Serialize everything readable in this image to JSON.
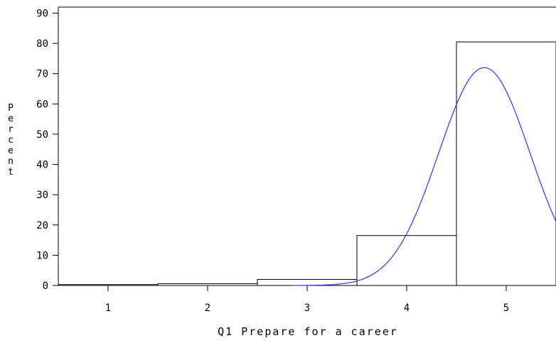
{
  "chart_data": {
    "type": "bar",
    "title": "",
    "xlabel": "Q1 Prepare for a career",
    "ylabel": "Percent",
    "x_ticks": [
      "1",
      "2",
      "3",
      "4",
      "5"
    ],
    "y_ticks": [
      "0",
      "10",
      "20",
      "30",
      "40",
      "50",
      "60",
      "70",
      "80",
      "90"
    ],
    "xlim": [
      0.5,
      5.5
    ],
    "ylim": [
      0,
      92
    ],
    "bins": [
      {
        "center": 1,
        "value": 0.3
      },
      {
        "center": 2,
        "value": 0.6
      },
      {
        "center": 3,
        "value": 2.0
      },
      {
        "center": 4,
        "value": 16.5
      },
      {
        "center": 5,
        "value": 80.5
      }
    ],
    "bin_width": 1,
    "normal_curve": {
      "mean": 4.78,
      "peak": 72,
      "sd": 0.46,
      "x_start": 2.85,
      "x_end": 5.5,
      "color": "#3333ff"
    },
    "grid": false,
    "legend": "none"
  }
}
